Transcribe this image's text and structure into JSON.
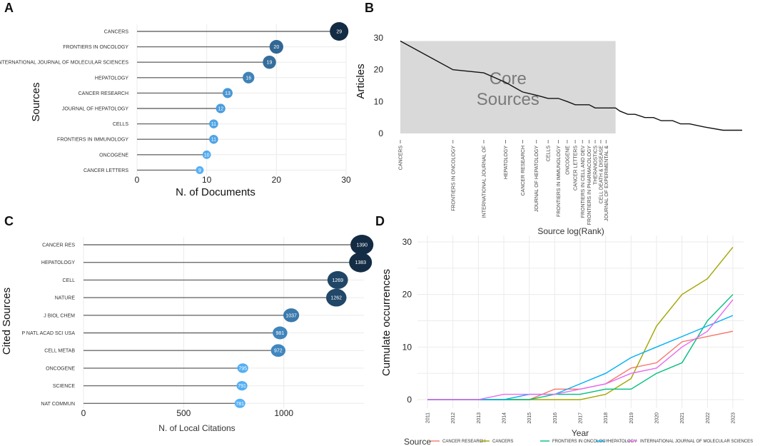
{
  "chart_data": [
    {
      "panel": "A",
      "type": "lollipop",
      "title": "",
      "xlabel": "N. of Documents",
      "ylabel": "Sources",
      "xlim": [
        0,
        30
      ],
      "xticks": [
        "0",
        "10",
        "20",
        "30"
      ],
      "categories": [
        "CANCERS",
        "FRONTIERS IN ONCOLOGY",
        "INTERNATIONAL JOURNAL OF MOLECULAR SCIENCES",
        "HEPATOLOGY",
        "CANCER RESEARCH",
        "JOURNAL OF HEPATOLOGY",
        "CELLS",
        "FRONTIERS IN IMMUNOLOGY",
        "ONCOGENE",
        "CANCER LETTERS"
      ],
      "values": [
        29,
        20,
        19,
        16,
        13,
        12,
        11,
        11,
        10,
        9
      ],
      "value_labels": [
        "29",
        "20",
        "19",
        "16",
        "13",
        "12",
        "11",
        "11",
        "10",
        "9"
      ]
    },
    {
      "panel": "B",
      "type": "line",
      "xlabel": "Source log(Rank)",
      "ylabel": "Articles",
      "ylim": [
        0,
        30
      ],
      "yticks": [
        "0",
        "10",
        "20",
        "30"
      ],
      "core_label_line1": "Core",
      "core_label_line2": "Sources",
      "core_rank_max": 17,
      "ranks": [
        1,
        2,
        3,
        4,
        5,
        6,
        7,
        8,
        9,
        10,
        11,
        12,
        13,
        14,
        15,
        16,
        17,
        18,
        20,
        22,
        25,
        28,
        31,
        36,
        40,
        45,
        55,
        70,
        90
      ],
      "values": [
        29,
        20,
        19,
        16,
        13,
        12,
        11,
        11,
        10,
        9,
        9,
        9,
        8,
        8,
        8,
        8,
        8,
        7,
        6,
        6,
        5,
        5,
        4,
        4,
        3,
        3,
        2,
        1,
        1
      ],
      "rank_labels": [
        {
          "rank": 1,
          "text": "CANCERS"
        },
        {
          "rank": 2,
          "text": "FRONTIERS IN ONCOLOGY"
        },
        {
          "rank": 3,
          "text": "INTERNATIONAL JOURNAL OF"
        },
        {
          "rank": 4,
          "text": "HEPATOLOGY"
        },
        {
          "rank": 5,
          "text": "CANCER RESEARCH"
        },
        {
          "rank": 6,
          "text": "JOURNAL OF HEPATOLOGY"
        },
        {
          "rank": 7,
          "text": "CELLS"
        },
        {
          "rank": 8,
          "text": "FRONTIERS IN IMMUNOLOGY"
        },
        {
          "rank": 9,
          "text": "ONCOGENE"
        },
        {
          "rank": 10,
          "text": "CANCER LETTERS"
        },
        {
          "rank": 11,
          "text": "FRONTIERS IN CELL AND DEV"
        },
        {
          "rank": 12,
          "text": "FRONTIERS IN PHARMACOLOGY"
        },
        {
          "rank": 13,
          "text": "THERANOSTICS"
        },
        {
          "rank": 14,
          "text": "CELL DEATH & DISEASE"
        },
        {
          "rank": 15,
          "text": "JOURNAL OF EXPERIMENTAL &"
        }
      ]
    },
    {
      "panel": "C",
      "type": "lollipop",
      "xlabel": "N. of Local Citations",
      "ylabel": "Cited  Sources",
      "xlim": [
        0,
        1400
      ],
      "xticks": [
        "0",
        "500",
        "1000"
      ],
      "categories": [
        "CANCER RES",
        "HEPATOLOGY",
        "CELL",
        "NATURE",
        "J BIOL CHEM",
        "P NATL ACAD SCI USA",
        "CELL METAB",
        "ONCOGENE",
        "SCIENCE",
        "NAT COMMUN"
      ],
      "values": [
        1390,
        1383,
        1269,
        1262,
        1037,
        981,
        972,
        795,
        791,
        781
      ],
      "value_labels": [
        "1390",
        "1383",
        "1269",
        "1262",
        "1037",
        "981",
        "972",
        "795",
        "791",
        "781"
      ]
    },
    {
      "panel": "D",
      "type": "line",
      "xlabel": "Year",
      "ylabel": "Cumulate occurrences",
      "ylim": [
        0,
        30
      ],
      "yticks": [
        "0",
        "10",
        "20",
        "30"
      ],
      "x": [
        "2011",
        "2012",
        "2013",
        "2014",
        "2015",
        "2016",
        "2017",
        "2018",
        "2019",
        "2020",
        "2021",
        "2022",
        "2023"
      ],
      "legend_title": "Source",
      "series": [
        {
          "name": "CANCER RESEARCH",
          "color": "#f8766d",
          "values": [
            0,
            0,
            0,
            0,
            0,
            2,
            2,
            3,
            6,
            7,
            11,
            12,
            13
          ]
        },
        {
          "name": "CANCERS",
          "color": "#a3a500",
          "values": [
            0,
            0,
            0,
            0,
            0,
            0,
            0,
            1,
            4,
            14,
            20,
            23,
            29
          ]
        },
        {
          "name": "FRONTIERS IN ONCOLOGY",
          "color": "#00bf7d",
          "values": [
            0,
            0,
            0,
            0,
            0,
            1,
            1,
            2,
            2,
            5,
            7,
            15,
            20
          ]
        },
        {
          "name": "HEPATOLOGY",
          "color": "#00b0f6",
          "values": [
            0,
            0,
            0,
            0,
            1,
            1,
            3,
            5,
            8,
            10,
            12,
            14,
            16
          ]
        },
        {
          "name": "INTERNATIONAL JOURNAL OF MOLECULAR SCIENCES",
          "color": "#e76bf3",
          "values": [
            0,
            0,
            0,
            1,
            1,
            1,
            2,
            3,
            5,
            6,
            10,
            13,
            19
          ]
        }
      ]
    }
  ]
}
